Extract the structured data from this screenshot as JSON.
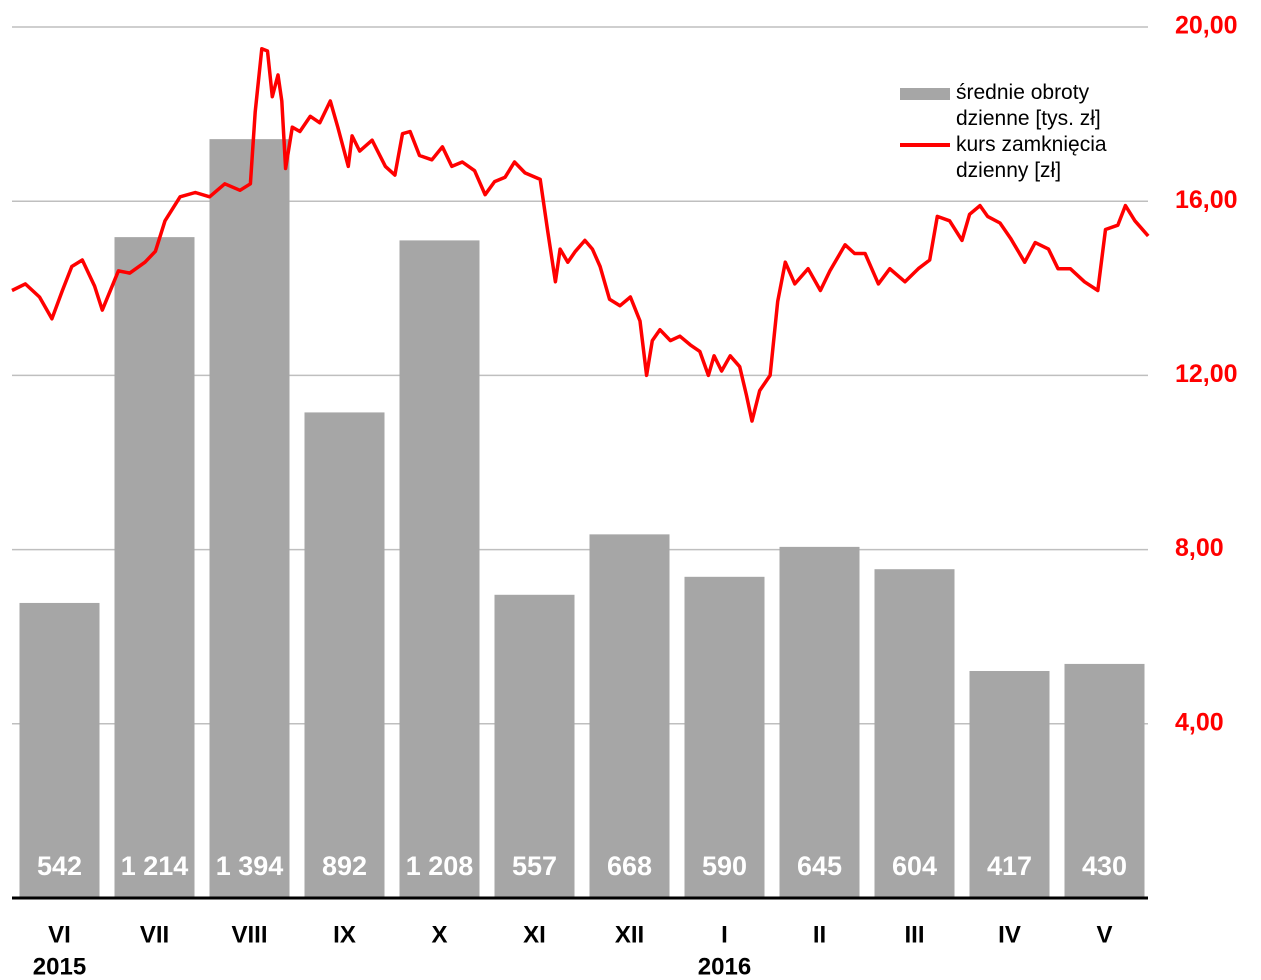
{
  "chart_data": {
    "type": "bar",
    "categories": [
      "VI",
      "VII",
      "VIII",
      "IX",
      "X",
      "XI",
      "XII",
      "I",
      "II",
      "III",
      "IV",
      "V"
    ],
    "x_sublabels": [
      "2015",
      null,
      null,
      null,
      null,
      null,
      null,
      "2016",
      null,
      null,
      null,
      null
    ],
    "ylim": [
      0,
      1600
    ],
    "y2lim": [
      0,
      20
    ],
    "y2ticks": [
      {
        "value": 4,
        "label": "4,00"
      },
      {
        "value": 8,
        "label": "8,00"
      },
      {
        "value": 12,
        "label": "12,00"
      },
      {
        "value": 16,
        "label": "16,00"
      },
      {
        "value": 20,
        "label": "20,00"
      }
    ],
    "xlim": [
      0,
      12
    ],
    "grid": true,
    "y2_color": "#ff0000",
    "series": [
      {
        "name": "średnie obroty dzienne [tys. zł]",
        "type": "bar",
        "color": "#a6a6a6",
        "values": [
          542,
          1214,
          1394,
          892,
          1208,
          557,
          668,
          590,
          645,
          604,
          417,
          430
        ],
        "value_labels": [
          "542",
          "1 214",
          "1 394",
          "892",
          "1 208",
          "557",
          "668",
          "590",
          "645",
          "604",
          "417",
          "430"
        ]
      },
      {
        "name": "kurs zamknięcia dzienny [zł]",
        "type": "line",
        "color": "#ff0000",
        "axis": "y2",
        "x": [
          0,
          0.14,
          0.29,
          0.42,
          0.53,
          0.63,
          0.74,
          0.87,
          0.95,
          1.12,
          1.24,
          1.4,
          1.51,
          1.61,
          1.77,
          1.93,
          2.08,
          2.24,
          2.4,
          2.51,
          2.56,
          2.63,
          2.69,
          2.74,
          2.8,
          2.84,
          2.88,
          2.95,
          3.03,
          3.14,
          3.24,
          3.35,
          3.43,
          3.54,
          3.58,
          3.66,
          3.79,
          3.93,
          4.03,
          4.11,
          4.19,
          4.29,
          4.42,
          4.53,
          4.63,
          4.74,
          4.87,
          4.98,
          5.08,
          5.19,
          5.29,
          5.4,
          5.56,
          5.64,
          5.72,
          5.77,
          5.85,
          5.93,
          6.03,
          6.11,
          6.19,
          6.29,
          6.4,
          6.51,
          6.61,
          6.68,
          6.74,
          6.82,
          6.93,
          7.03,
          7.14,
          7.24,
          7.33,
          7.39,
          7.47,
          7.56,
          7.66,
          7.73,
          7.79,
          7.87,
          7.98,
          8.06,
          8.14,
          8.24,
          8.38,
          8.51,
          8.61,
          8.77,
          8.87,
          8.98,
          9.12,
          9.24,
          9.4,
          9.54,
          9.66,
          9.74,
          9.87,
          10,
          10.08,
          10.19,
          10.27,
          10.4,
          10.51,
          10.66,
          10.77,
          10.91,
          11.01,
          11.14,
          11.29,
          11.43,
          11.51,
          11.64,
          11.72,
          11.82,
          11.96
        ],
        "values": [
          13.95,
          14.1,
          13.8,
          13.3,
          13.95,
          14.5,
          14.65,
          14.05,
          13.5,
          14.4,
          14.35,
          14.6,
          14.85,
          15.55,
          16.1,
          16.2,
          16.1,
          16.4,
          16.25,
          16.4,
          18.05,
          19.5,
          19.45,
          18.4,
          18.9,
          18.3,
          16.75,
          17.7,
          17.6,
          17.95,
          17.8,
          18.3,
          17.7,
          16.8,
          17.5,
          17.15,
          17.4,
          16.8,
          16.6,
          17.55,
          17.6,
          17.05,
          16.95,
          17.25,
          16.8,
          16.9,
          16.7,
          16.15,
          16.45,
          16.55,
          16.9,
          16.65,
          16.5,
          15.3,
          14.15,
          14.9,
          14.6,
          14.85,
          15.1,
          14.9,
          14.5,
          13.75,
          13.6,
          13.8,
          13.25,
          12.0,
          12.8,
          13.05,
          12.8,
          12.9,
          12.7,
          12.55,
          12.0,
          12.45,
          12.1,
          12.45,
          12.2,
          11.55,
          10.95,
          11.65,
          12.0,
          13.7,
          14.6,
          14.1,
          14.45,
          13.95,
          14.4,
          15.0,
          14.8,
          14.8,
          14.1,
          14.45,
          14.15,
          14.45,
          14.65,
          15.65,
          15.55,
          15.1,
          15.7,
          15.9,
          15.65,
          15.5,
          15.15,
          14.6,
          15.05,
          14.9,
          14.45,
          14.45,
          14.15,
          13.95,
          15.35,
          15.45,
          15.9,
          15.55,
          15.2
        ]
      }
    ]
  }
}
